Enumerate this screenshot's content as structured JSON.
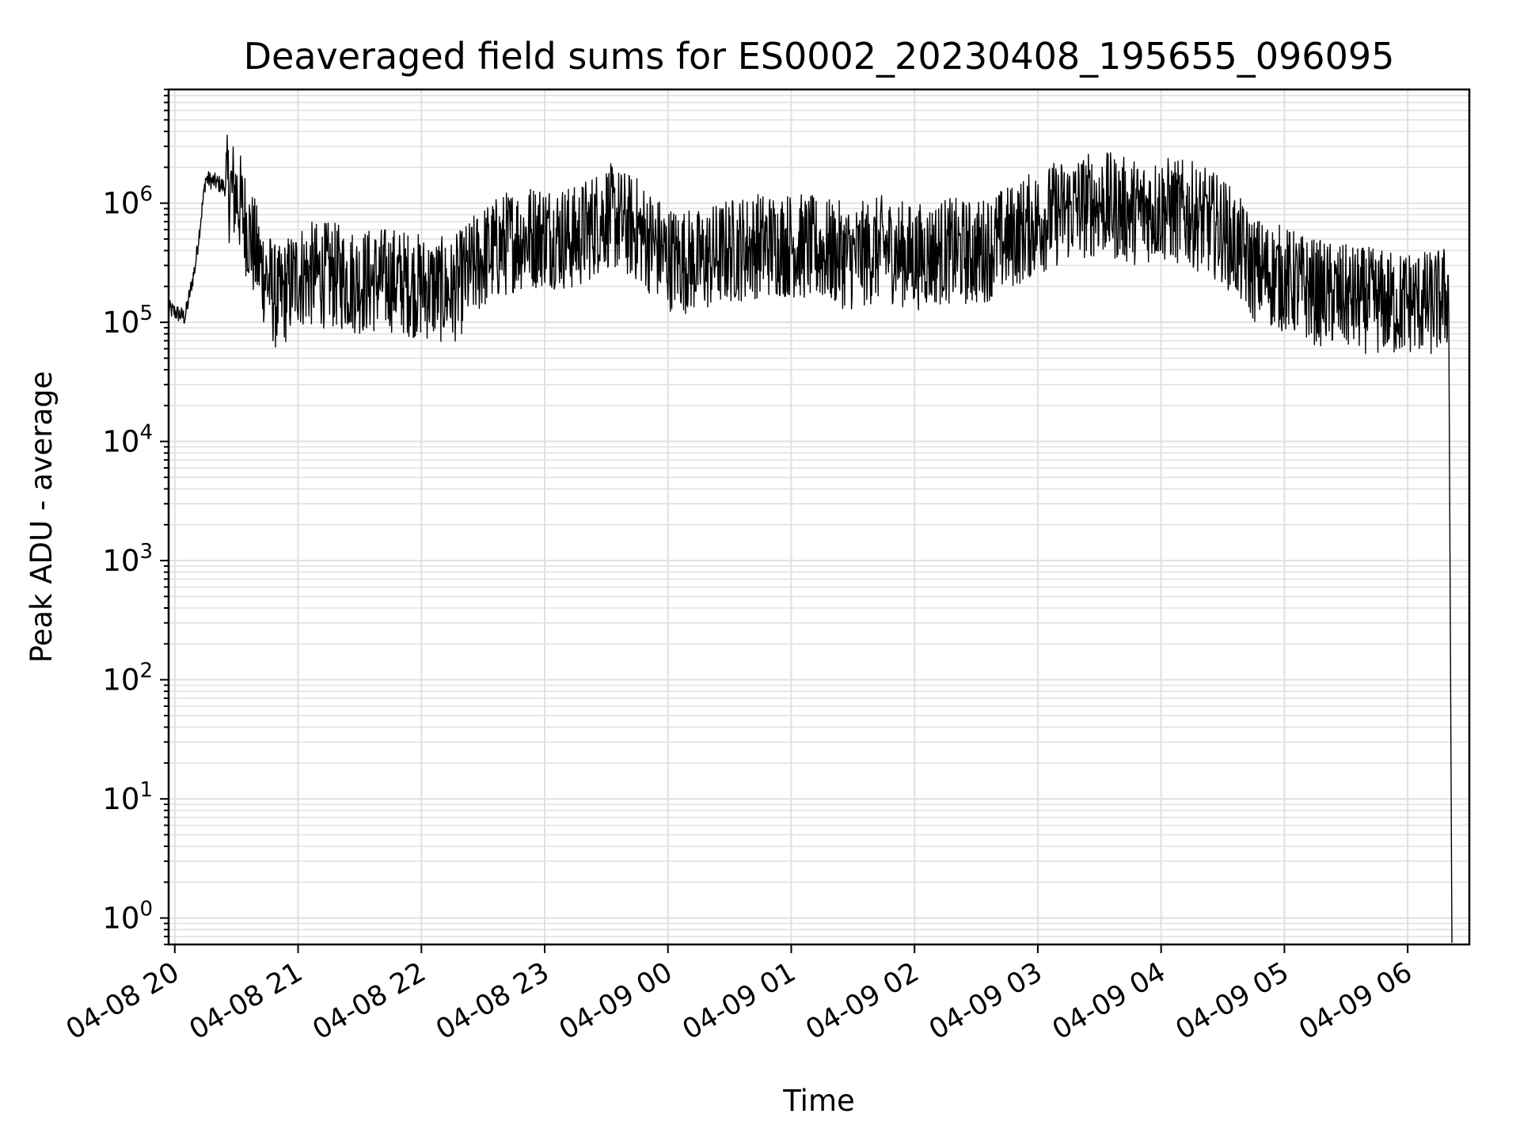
{
  "chart_data": {
    "type": "line",
    "title": "Deaveraged field sums for ES0002_20230408_195655_096095",
    "xlabel": "Time",
    "ylabel": "Peak ADU - average",
    "yscale": "log",
    "ylim": [
      0.6,
      9000000
    ],
    "xlim": [
      "2023-04-08 19:57",
      "2023-04-09 06:30"
    ],
    "grid": true,
    "line_color": "#000000",
    "grid_color": "#e0e0e0",
    "x_ticks": [
      "04-08 20",
      "04-08 21",
      "04-08 22",
      "04-08 23",
      "04-09 00",
      "04-09 01",
      "04-09 02",
      "04-09 03",
      "04-09 04",
      "04-09 05",
      "04-09 06"
    ],
    "y_ticks": [
      {
        "base": "10",
        "exp": "0"
      },
      {
        "base": "10",
        "exp": "1"
      },
      {
        "base": "10",
        "exp": "2"
      },
      {
        "base": "10",
        "exp": "3"
      },
      {
        "base": "10",
        "exp": "4"
      },
      {
        "base": "10",
        "exp": "5"
      },
      {
        "base": "10",
        "exp": "6"
      }
    ],
    "series": [
      {
        "x": [
          "2023-04-08 19:57",
          "2023-04-08 20:05",
          "2023-04-08 20:10",
          "2023-04-08 20:15",
          "2023-04-08 20:20",
          "2023-04-08 20:30",
          "2023-04-08 20:40",
          "2023-04-08 20:50",
          "2023-04-08 21:00",
          "2023-04-08 21:15",
          "2023-04-08 21:30",
          "2023-04-08 21:45",
          "2023-04-08 22:00",
          "2023-04-08 22:15",
          "2023-04-08 22:30",
          "2023-04-08 22:45",
          "2023-04-08 23:00",
          "2023-04-08 23:15",
          "2023-04-08 23:30",
          "2023-04-08 23:45",
          "2023-04-09 00:00",
          "2023-04-09 00:15",
          "2023-04-09 00:30",
          "2023-04-09 00:45",
          "2023-04-09 01:00",
          "2023-04-09 01:15",
          "2023-04-09 01:30",
          "2023-04-09 01:45",
          "2023-04-09 02:00",
          "2023-04-09 02:15",
          "2023-04-09 02:30",
          "2023-04-09 02:45",
          "2023-04-09 03:00",
          "2023-04-09 03:15",
          "2023-04-09 03:30",
          "2023-04-09 03:45",
          "2023-04-09 04:00",
          "2023-04-09 04:15",
          "2023-04-09 04:30",
          "2023-04-09 04:45",
          "2023-04-09 05:00",
          "2023-04-09 05:15",
          "2023-04-09 05:30",
          "2023-04-09 05:45",
          "2023-04-09 05:55",
          "2023-04-09 06:00",
          "2023-04-09 06:05",
          "2023-04-09 06:10",
          "2023-04-09 06:15",
          "2023-04-09 06:18",
          "2023-04-09 06:20"
        ],
        "y": [
          130000,
          110000,
          300000,
          1600000,
          1500000,
          1200000,
          350000,
          150000,
          250000,
          250000,
          220000,
          230000,
          200000,
          180000,
          350000,
          500000,
          550000,
          500000,
          800000,
          600000,
          350000,
          320000,
          400000,
          450000,
          450000,
          400000,
          350000,
          420000,
          350000,
          400000,
          380000,
          500000,
          700000,
          900000,
          1000000,
          850000,
          900000,
          800000,
          600000,
          280000,
          230000,
          180000,
          160000,
          150000,
          140000,
          150000,
          150000,
          140000,
          150000,
          160000,
          170000
        ]
      }
    ]
  }
}
